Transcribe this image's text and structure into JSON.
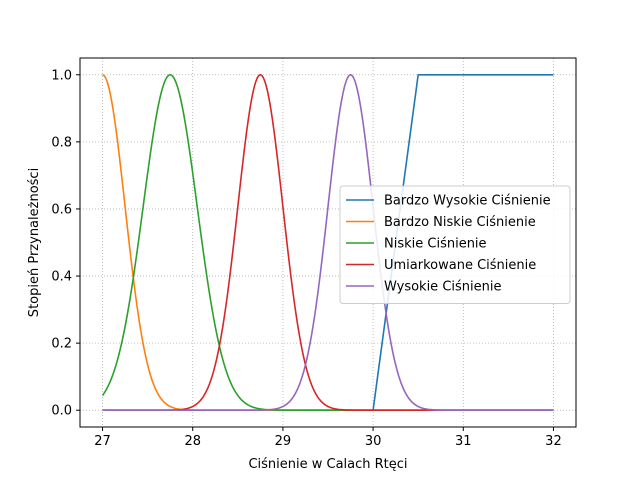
{
  "chart_data": {
    "type": "line",
    "xlabel": "Ciśnienie w Calach Rtęci",
    "ylabel": "Stopień Przynależności",
    "xlim": [
      26.75,
      32.25
    ],
    "ylim": [
      -0.05,
      1.05
    ],
    "xticks": [
      27,
      28,
      29,
      30,
      31,
      32
    ],
    "yticks": [
      0.0,
      0.2,
      0.4,
      0.6,
      0.8,
      1.0
    ],
    "xtick_labels": [
      "27",
      "28",
      "29",
      "30",
      "31",
      "32"
    ],
    "ytick_labels": [
      "0.0",
      "0.2",
      "0.4",
      "0.6",
      "0.8",
      "1.0"
    ],
    "grid": true,
    "legend_position": "center-right",
    "series": [
      {
        "name": "Bardzo Wysokie Ciśnienie",
        "color": "#1f77b4",
        "kind": "piecewise",
        "points": [
          [
            27,
            0
          ],
          [
            30,
            0
          ],
          [
            30.5,
            1
          ],
          [
            32,
            1
          ]
        ]
      },
      {
        "name": "Bardzo Niskie Ciśnienie",
        "color": "#ff7f0e",
        "kind": "gaussian",
        "mean": 27.0,
        "sigma": 0.25,
        "range": [
          27,
          32
        ]
      },
      {
        "name": "Niskie Ciśnienie",
        "color": "#2ca02c",
        "kind": "gaussian",
        "mean": 27.75,
        "sigma": 0.3,
        "range": [
          27,
          32
        ]
      },
      {
        "name": "Umiarkowane Ciśnienie",
        "color": "#d62728",
        "kind": "gaussian",
        "mean": 28.75,
        "sigma": 0.25,
        "range": [
          27,
          32
        ]
      },
      {
        "name": "Wysokie Ciśnienie",
        "color": "#9467bd",
        "kind": "gaussian",
        "mean": 29.75,
        "sigma": 0.25,
        "range": [
          27,
          32
        ]
      }
    ]
  }
}
